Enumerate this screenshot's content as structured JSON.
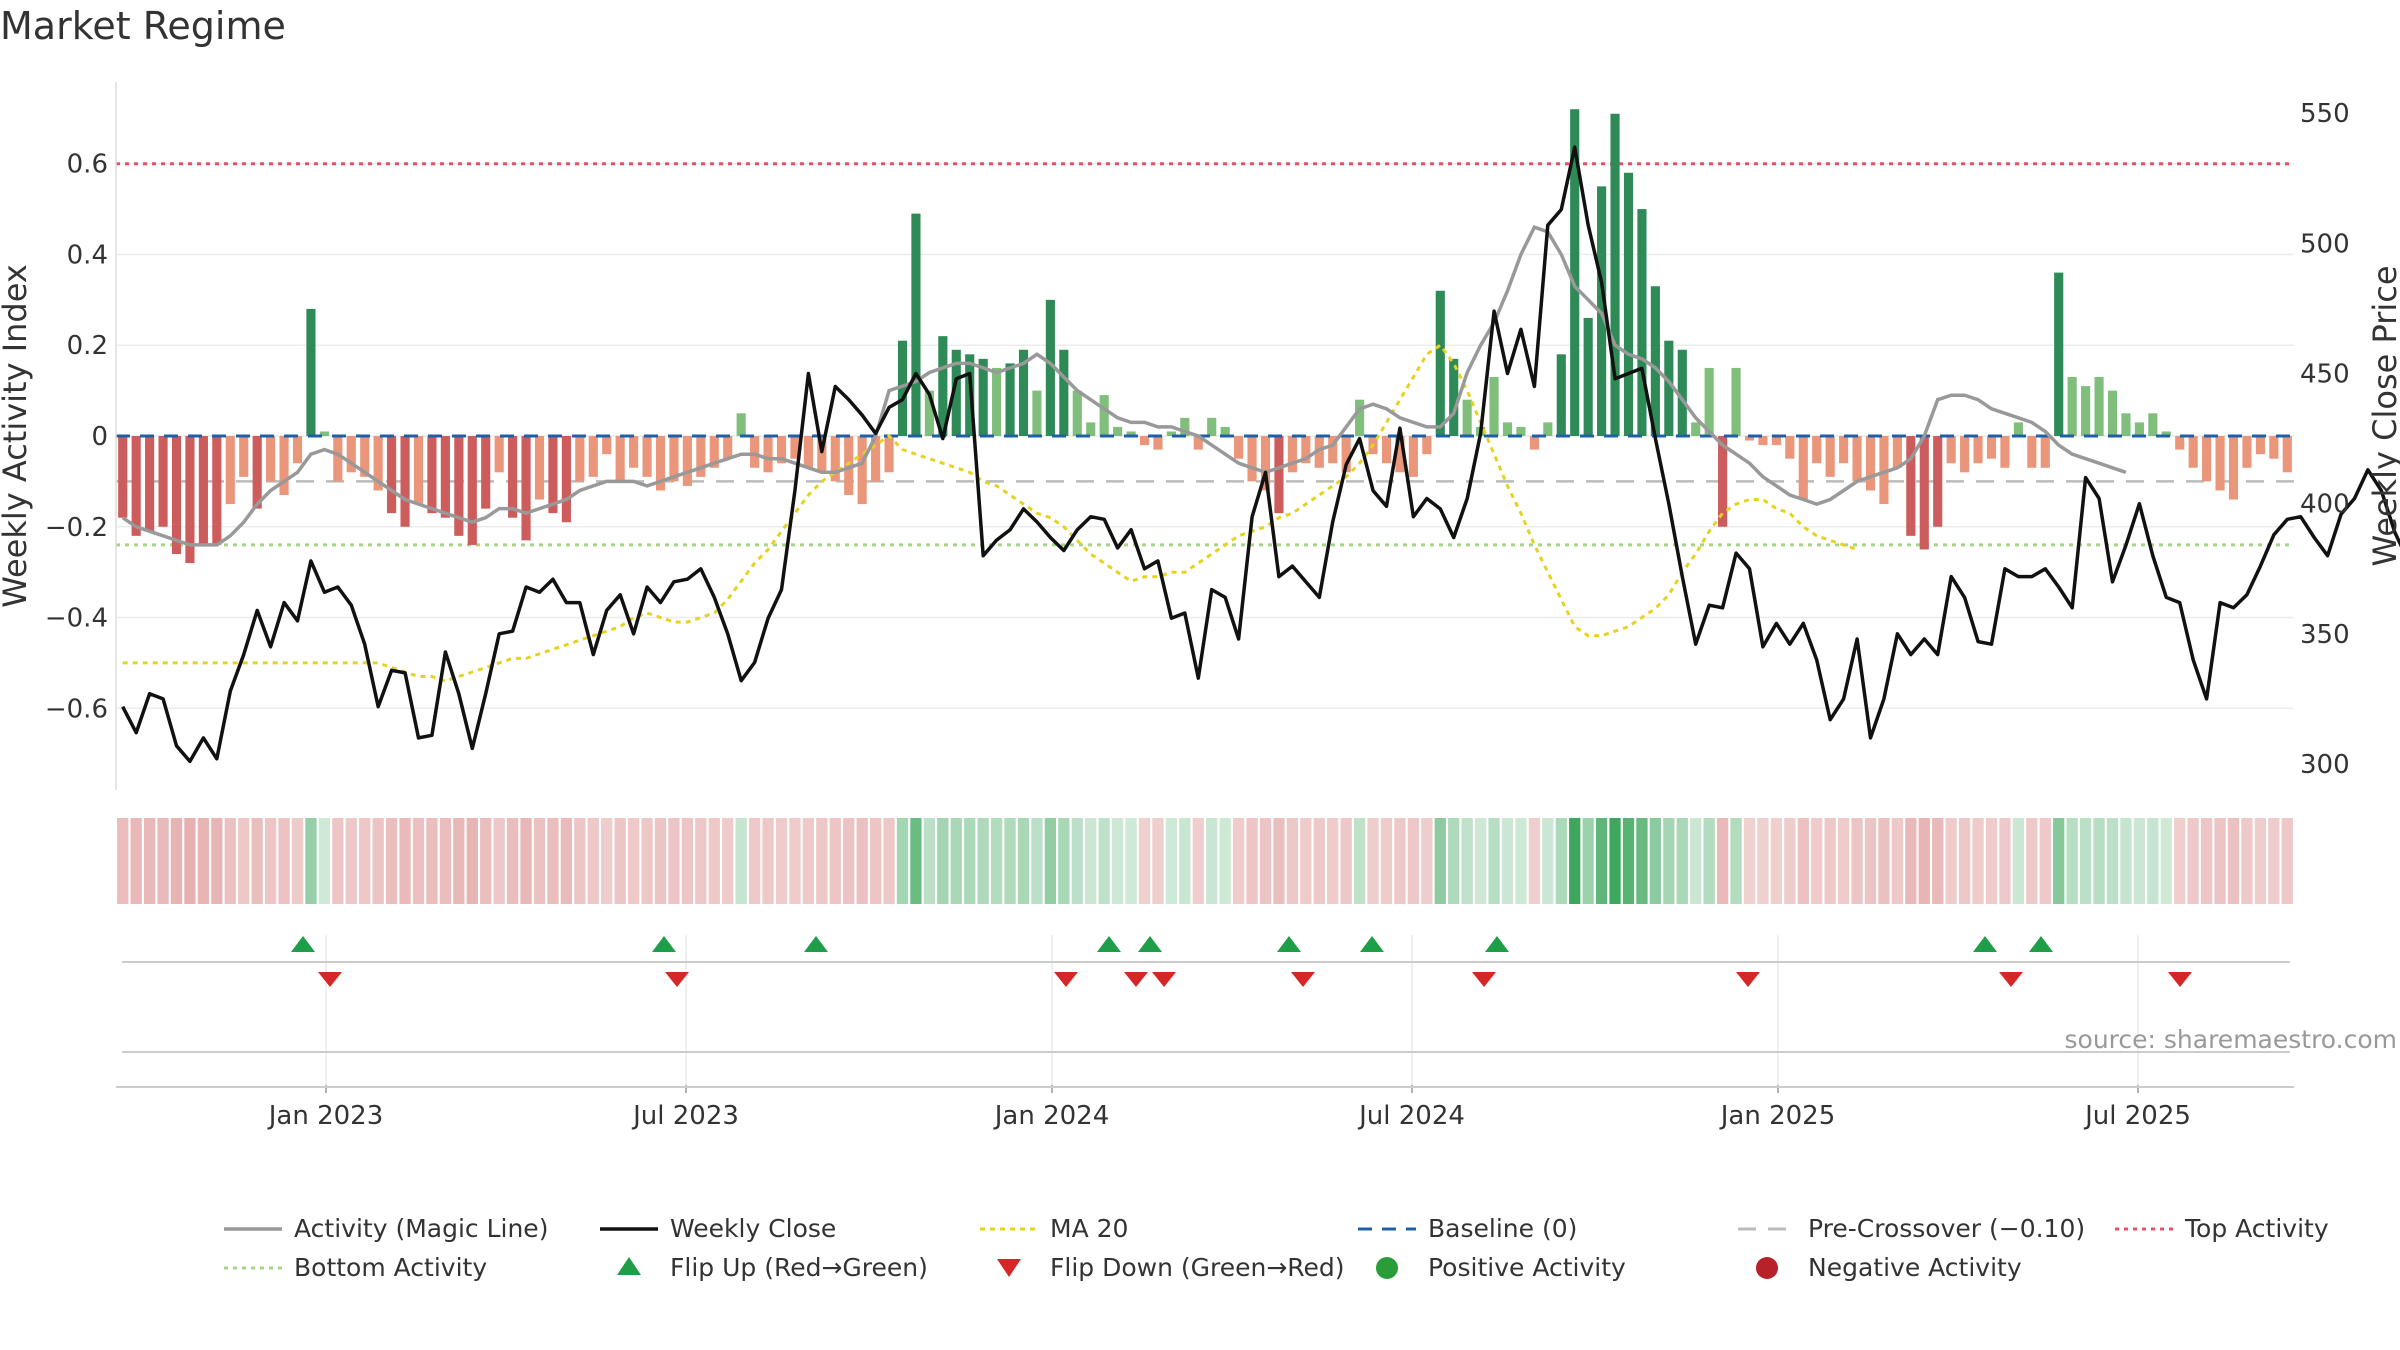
{
  "title": "Market Regime",
  "source": "source: sharemaestro.com",
  "chart_data": {
    "type": "bar",
    "weeks": 121,
    "start_week": "2022-10-24",
    "x_ticks": [
      {
        "label": "Jan 2023",
        "index": 10
      },
      {
        "label": "Jul 2023",
        "index": 36
      },
      {
        "label": "Jan 2024",
        "index": 62
      },
      {
        "label": "Jul 2024",
        "index": 88
      },
      {
        "label": "Jan 2025",
        "index": 114
      },
      {
        "label": "Jul 2025",
        "index": 140
      }
    ],
    "left_axis": {
      "label": "Weekly Activity Index",
      "ylim": [
        -0.78,
        0.78
      ],
      "ticks": [
        -0.6,
        -0.4,
        -0.2,
        0,
        0.2,
        0.4,
        0.6
      ],
      "tick_labels": [
        "−0.6",
        "−0.4",
        "−0.2",
        "0",
        "0.2",
        "0.4",
        "0.6"
      ]
    },
    "right_axis": {
      "label": "Weekly Close Price",
      "ylim": [
        290,
        562
      ],
      "ticks": [
        300,
        350,
        400,
        450,
        500,
        550
      ],
      "tick_labels": [
        "300",
        "350",
        "400",
        "450",
        "500",
        "550"
      ]
    },
    "reference_lines": {
      "top_activity": 0.6,
      "bottom_activity": -0.24,
      "pre_crossover": -0.1,
      "baseline": 0
    },
    "activity": [
      -0.18,
      -0.22,
      -0.21,
      -0.2,
      -0.26,
      -0.28,
      -0.24,
      -0.24,
      -0.15,
      -0.09,
      -0.16,
      -0.1,
      -0.13,
      -0.06,
      0.28,
      0.01,
      -0.1,
      -0.08,
      -0.09,
      -0.12,
      -0.17,
      -0.2,
      -0.15,
      -0.17,
      -0.18,
      -0.22,
      -0.24,
      -0.16,
      -0.08,
      -0.18,
      -0.23,
      -0.14,
      -0.17,
      -0.19,
      -0.1,
      -0.09,
      -0.04,
      -0.1,
      -0.07,
      -0.09,
      -0.12,
      -0.1,
      -0.11,
      -0.09,
      -0.07,
      -0.05,
      0.05,
      -0.07,
      -0.08,
      -0.06,
      -0.05,
      -0.07,
      -0.08,
      -0.1,
      -0.13,
      -0.15,
      -0.1,
      -0.08,
      0.21,
      0.49,
      0.1,
      0.22,
      0.19,
      0.18,
      0.17,
      0.15,
      0.16,
      0.19,
      0.1,
      0.3,
      0.19,
      0.1,
      0.03,
      0.09,
      0.02,
      0.01,
      -0.02,
      -0.03,
      0.01,
      0.04,
      -0.03,
      0.04,
      0.02,
      -0.05,
      -0.1,
      -0.12,
      -0.17,
      -0.08,
      -0.06,
      -0.07,
      -0.06,
      -0.08,
      0.08,
      -0.04,
      -0.06,
      -0.08,
      -0.09,
      -0.04,
      0.32,
      0.17,
      0.08,
      0.02,
      0.13,
      0.03,
      0.02,
      -0.03,
      0.03,
      0.18,
      0.72,
      0.26,
      0.55,
      0.71,
      0.58,
      0.5,
      0.33,
      0.21,
      0.19,
      0.03,
      0.15,
      -0.2,
      0.15
    ],
    "activity_cont": [
      -0.01,
      -0.02,
      -0.02,
      -0.05,
      -0.14,
      -0.06,
      -0.09,
      -0.06,
      -0.1,
      -0.12,
      -0.15,
      -0.07,
      -0.22,
      -0.25,
      -0.2,
      -0.06,
      -0.08,
      -0.06,
      -0.05,
      -0.07,
      0.03,
      -0.07,
      -0.07,
      0.36,
      0.13,
      0.11,
      0.13,
      0.1,
      0.05,
      0.03,
      0.05,
      0.01,
      -0.03,
      -0.07,
      -0.1,
      -0.12,
      -0.14,
      -0.07,
      -0.04,
      -0.05,
      -0.08
    ],
    "weekly_close": [
      322,
      312,
      327,
      325,
      307,
      301,
      310,
      302,
      328,
      342,
      359,
      345,
      362,
      355,
      378,
      366,
      368,
      361,
      346,
      322,
      336,
      335,
      310,
      311,
      343,
      327,
      306,
      327,
      350,
      351,
      368,
      366,
      371,
      362,
      362,
      342,
      359,
      365,
      350,
      368,
      362,
      370,
      371,
      375,
      364,
      350,
      332,
      339,
      356,
      367,
      405,
      450,
      420,
      445,
      440,
      434,
      427,
      437,
      440,
      450,
      442,
      425,
      448,
      450,
      380,
      386,
      390,
      398,
      393,
      387,
      382,
      390,
      395,
      394,
      383,
      390,
      375,
      378,
      356,
      358,
      333,
      367,
      364,
      348,
      395,
      412,
      372,
      376,
      370,
      364,
      393,
      415,
      425,
      405,
      399,
      429,
      395,
      402,
      398,
      387,
      402,
      427,
      474,
      450,
      467,
      445,
      507,
      513,
      537,
      507,
      485,
      448,
      450,
      452,
      425,
      400,
      372,
      346,
      361,
      360,
      381,
      375,
      345,
      354,
      346,
      354,
      340,
      317,
      325,
      348,
      310,
      325,
      350
    ],
    "weekly_close_cont": [
      342,
      348,
      342,
      372,
      364,
      347,
      346,
      375,
      372,
      372,
      375,
      368,
      360,
      410,
      402,
      370,
      384,
      400,
      380,
      364,
      362,
      340,
      325,
      362,
      360,
      365,
      376,
      388,
      394,
      395,
      387,
      380,
      396,
      402,
      413,
      405,
      389,
      378,
      365,
      362,
      355
    ],
    "ma20": [
      -0.5,
      -0.5,
      -0.5,
      -0.5,
      -0.5,
      -0.5,
      -0.5,
      -0.5,
      -0.5,
      -0.5,
      -0.5,
      -0.5,
      -0.5,
      -0.5,
      -0.5,
      -0.5,
      -0.5,
      -0.5,
      -0.5,
      -0.5,
      -0.51,
      -0.52,
      -0.53,
      -0.53,
      -0.54,
      -0.53,
      -0.52,
      -0.51,
      -0.5,
      -0.49,
      -0.49,
      -0.48,
      -0.47,
      -0.46,
      -0.45,
      -0.44,
      -0.43,
      -0.42,
      -0.4,
      -0.39,
      -0.4,
      -0.41,
      -0.41,
      -0.4,
      -0.39,
      -0.36,
      -0.32,
      -0.28,
      -0.25,
      -0.21,
      -0.17,
      -0.13,
      -0.1,
      -0.08,
      -0.06,
      -0.04,
      -0.02,
      0.0,
      -0.03,
      -0.04,
      -0.05,
      -0.06,
      -0.07,
      -0.08,
      -0.1,
      -0.11,
      -0.13,
      -0.15,
      -0.17,
      -0.18,
      -0.2,
      -0.23,
      -0.26,
      -0.28,
      -0.3,
      -0.32,
      -0.31,
      -0.31,
      -0.3,
      -0.3,
      -0.28,
      -0.26,
      -0.24,
      -0.22,
      -0.21,
      -0.2,
      -0.18,
      -0.17,
      -0.15,
      -0.13,
      -0.11,
      -0.09,
      -0.06,
      -0.02,
      0.03,
      0.08,
      0.13,
      0.18,
      0.2,
      0.16,
      0.1,
      0.03,
      -0.04,
      -0.11,
      -0.17,
      -0.24,
      -0.3,
      -0.36,
      -0.42,
      -0.44,
      -0.44,
      -0.43,
      -0.42,
      -0.4,
      -0.38,
      -0.35,
      -0.3,
      -0.26,
      -0.21,
      -0.17,
      -0.15
    ],
    "ma20_cont": [
      -0.14,
      -0.14,
      -0.16,
      -0.17,
      -0.2,
      -0.22,
      -0.23,
      -0.24,
      -0.25
    ],
    "magic": [
      -0.18,
      -0.2,
      -0.21,
      -0.22,
      -0.23,
      -0.24,
      -0.24,
      -0.24,
      -0.22,
      -0.19,
      -0.15,
      -0.12,
      -0.1,
      -0.08,
      -0.04,
      -0.03,
      -0.04,
      -0.06,
      -0.08,
      -0.1,
      -0.12,
      -0.14,
      -0.15,
      -0.16,
      -0.17,
      -0.18,
      -0.19,
      -0.18,
      -0.16,
      -0.16,
      -0.17,
      -0.16,
      -0.15,
      -0.14,
      -0.12,
      -0.11,
      -0.1,
      -0.1,
      -0.1,
      -0.11,
      -0.1,
      -0.09,
      -0.08,
      -0.07,
      -0.06,
      -0.05,
      -0.04,
      -0.04,
      -0.05,
      -0.05,
      -0.06,
      -0.07,
      -0.08,
      -0.08,
      -0.07,
      -0.06,
      0.0,
      0.1,
      0.11,
      0.12,
      0.14,
      0.15,
      0.16,
      0.16,
      0.15,
      0.14,
      0.15,
      0.16,
      0.18,
      0.16,
      0.13,
      0.1,
      0.08,
      0.06,
      0.04,
      0.03,
      0.03,
      0.02,
      0.02,
      0.01,
      0.0,
      -0.02,
      -0.04,
      -0.06,
      -0.07,
      -0.08,
      -0.07,
      -0.06,
      -0.05,
      -0.03,
      -0.02,
      0.02,
      0.06,
      0.07,
      0.06,
      0.04,
      0.03,
      0.02,
      0.02,
      0.05,
      0.14,
      0.2,
      0.25,
      0.32,
      0.4,
      0.46,
      0.45,
      0.4,
      0.33,
      0.3,
      0.27,
      0.2,
      0.18,
      0.17,
      0.15,
      0.12,
      0.08,
      0.04,
      0.01,
      -0.02,
      -0.04
    ],
    "magic_cont": [
      -0.06,
      -0.09,
      -0.11,
      -0.13,
      -0.14,
      -0.15,
      -0.14,
      -0.12,
      -0.1,
      -0.09,
      -0.08,
      -0.07,
      -0.05,
      0.0,
      0.08,
      0.09,
      0.09,
      0.08,
      0.06,
      0.05,
      0.04,
      0.03,
      0.01,
      -0.02,
      -0.04,
      -0.05,
      -0.06,
      -0.07,
      -0.08
    ],
    "flip_up_weeks": [
      6,
      19,
      24,
      33,
      35,
      38,
      43,
      48
    ],
    "flip_down_weeks": [
      7,
      20,
      34,
      37,
      38,
      42,
      48,
      55
    ],
    "flip_up_2025": [
      61,
      63
    ],
    "flip_down_2025": [
      58,
      62,
      68
    ]
  },
  "legend": [
    {
      "label": "Activity (Magic Line)",
      "icon": "gray-line"
    },
    {
      "label": "Weekly Close",
      "icon": "black-line"
    },
    {
      "label": "MA 20",
      "icon": "yellow-dotted"
    },
    {
      "label": "Baseline (0)",
      "icon": "blue-dash"
    },
    {
      "label": "Pre-Crossover (−0.10)",
      "icon": "gray-dash"
    },
    {
      "label": "Top Activity",
      "icon": "red-dotted"
    },
    {
      "label": "Bottom Activity",
      "icon": "green-dotted"
    },
    {
      "label": "Flip Up (Red→Green)",
      "icon": "green-triangle-up"
    },
    {
      "label": "Flip Down (Green→Red)",
      "icon": "red-triangle-down"
    },
    {
      "label": "Positive Activity",
      "icon": "green-dot"
    },
    {
      "label": "Negative Activity",
      "icon": "red-dot"
    }
  ],
  "colors": {
    "pos_strong": "#2e8b57",
    "pos_light": "#7fbf7b",
    "neg_strong": "#cd5c5c",
    "neg_light": "#e9967a",
    "top": "#e8506a",
    "bottom": "#a8d48a",
    "baseline": "#1f5fa8",
    "pre": "#bbbbbb",
    "ma": "#e6d220",
    "magic": "#999999",
    "close": "#111111",
    "flip_up": "#1e9e48",
    "flip_down": "#d62728"
  }
}
